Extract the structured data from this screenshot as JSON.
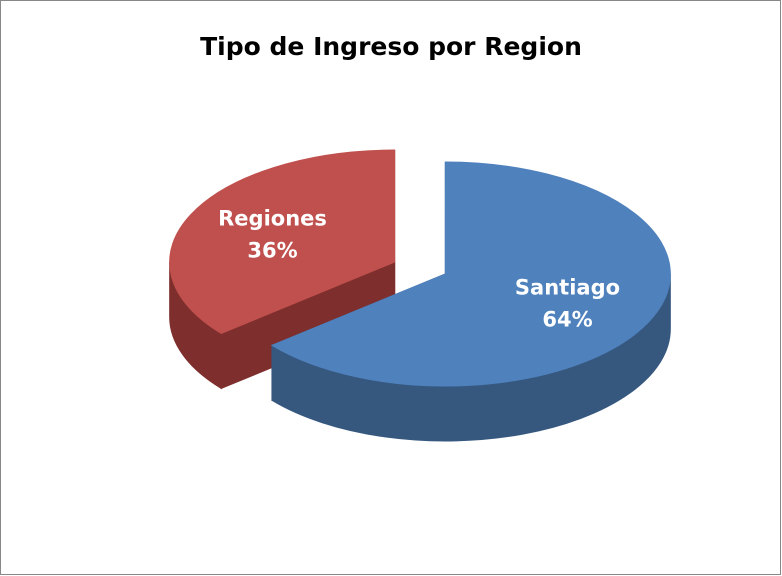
{
  "chart_data": {
    "type": "pie3d",
    "title": "Tipo de Ingreso por Region",
    "categories": [
      "Santiago",
      "Regiones"
    ],
    "values": [
      64,
      36
    ],
    "value_labels": [
      "64%",
      "36%"
    ],
    "colors": [
      "#4f81bd",
      "#c0504d"
    ],
    "side_colors": [
      "#36587f",
      "#7e2f2d"
    ]
  }
}
